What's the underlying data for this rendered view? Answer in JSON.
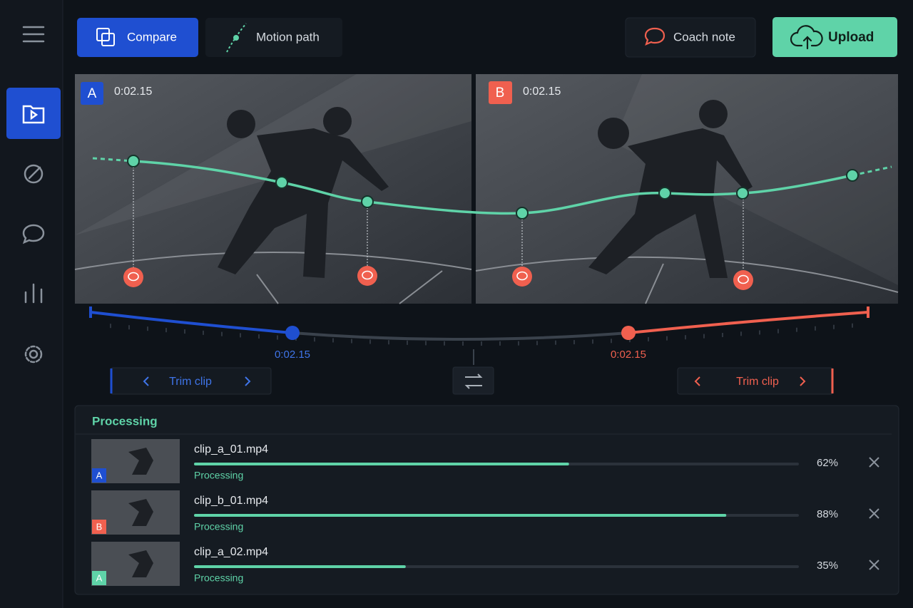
{
  "toolbar": {
    "compare": "Compare",
    "motion_path": "Motion path",
    "coach_note": "Coach note",
    "upload": "Upload"
  },
  "videos": [
    {
      "badge": "A",
      "time": "0:02.15"
    },
    {
      "badge": "B",
      "time": "0:02.15"
    }
  ],
  "timeline": {
    "markers": [
      "0:02.15",
      "0:02.15"
    ],
    "trim": [
      "Trim clip",
      "Trim clip"
    ]
  },
  "processing": {
    "title": "Processing",
    "items": [
      {
        "file": "clip_a_01.mp4",
        "status": "Processing",
        "percent": 62,
        "percent_label": "62%",
        "badge": "A"
      },
      {
        "file": "clip_b_01.mp4",
        "status": "Processing",
        "percent": 88,
        "percent_label": "88%",
        "badge": "B"
      },
      {
        "file": "clip_a_02.mp4",
        "status": "Processing",
        "percent": 35,
        "percent_label": "35%",
        "badge": "A"
      }
    ]
  }
}
